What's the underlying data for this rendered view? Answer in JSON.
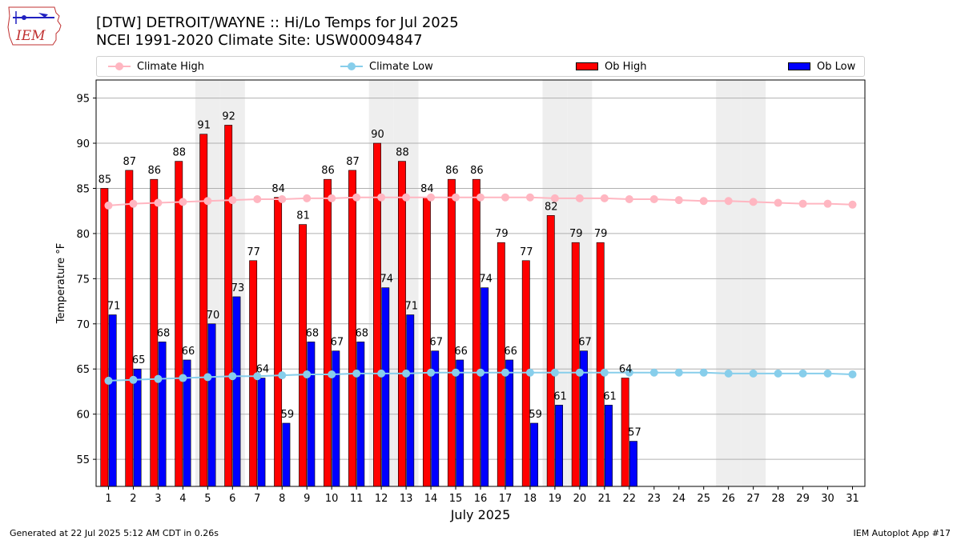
{
  "header": {
    "title_line1": "[DTW] DETROIT/WAYNE :: Hi/Lo Temps for Jul 2025",
    "title_line2": "NCEI 1991-2020 Climate Site: USW00094847",
    "logo_text": "IEM"
  },
  "legend": {
    "items": [
      {
        "label": "Climate High",
        "color": "#ffb6c1"
      },
      {
        "label": "Climate Low",
        "color": "#87ceeb"
      },
      {
        "label": "Ob High",
        "color": "#ff0000"
      },
      {
        "label": "Ob Low",
        "color": "#0000ff"
      }
    ]
  },
  "footer": {
    "left": "Generated at 22 Jul 2025 5:12 AM CDT in 0.26s",
    "right": "IEM Autoplot App #17"
  },
  "chart_data": {
    "type": "bar",
    "xlabel": "July 2025",
    "ylabel": "Temperature °F",
    "ylim": [
      52,
      97
    ],
    "yticks": [
      55,
      60,
      65,
      70,
      75,
      80,
      85,
      90,
      95
    ],
    "grid": true,
    "categories": [
      "1",
      "2",
      "3",
      "4",
      "5",
      "6",
      "7",
      "8",
      "9",
      "10",
      "11",
      "12",
      "13",
      "14",
      "15",
      "16",
      "17",
      "18",
      "19",
      "20",
      "21",
      "22",
      "23",
      "24",
      "25",
      "26",
      "27",
      "28",
      "29",
      "30",
      "31"
    ],
    "weekend_days": [
      5,
      6,
      12,
      13,
      19,
      20,
      26,
      27
    ],
    "series": [
      {
        "name": "Ob High",
        "kind": "bar",
        "color": "#ff0000",
        "values": [
          85,
          87,
          86,
          88,
          91,
          92,
          77,
          84,
          81,
          86,
          87,
          90,
          88,
          84,
          86,
          86,
          79,
          77,
          82,
          79,
          79,
          64,
          null,
          null,
          null,
          null,
          null,
          null,
          null,
          null,
          null
        ]
      },
      {
        "name": "Ob Low",
        "kind": "bar",
        "color": "#0000ff",
        "values": [
          71,
          65,
          68,
          66,
          70,
          73,
          64,
          59,
          68,
          67,
          68,
          74,
          71,
          67,
          66,
          74,
          66,
          59,
          61,
          67,
          61,
          57,
          null,
          null,
          null,
          null,
          null,
          null,
          null,
          null,
          null
        ]
      },
      {
        "name": "Climate High",
        "kind": "line",
        "color": "#ffb6c1",
        "values": [
          83.1,
          83.3,
          83.4,
          83.5,
          83.6,
          83.7,
          83.8,
          83.8,
          83.9,
          83.9,
          84.0,
          84.0,
          84.0,
          84.0,
          84.0,
          84.0,
          84.0,
          84.0,
          83.9,
          83.9,
          83.9,
          83.8,
          83.8,
          83.7,
          83.6,
          83.6,
          83.5,
          83.4,
          83.3,
          83.3,
          83.2
        ]
      },
      {
        "name": "Climate Low",
        "kind": "line",
        "color": "#87ceeb",
        "values": [
          63.7,
          63.8,
          63.9,
          64.0,
          64.1,
          64.2,
          64.2,
          64.3,
          64.4,
          64.4,
          64.5,
          64.5,
          64.5,
          64.6,
          64.6,
          64.6,
          64.6,
          64.6,
          64.6,
          64.6,
          64.6,
          64.6,
          64.6,
          64.6,
          64.6,
          64.5,
          64.5,
          64.5,
          64.5,
          64.5,
          64.4
        ]
      }
    ]
  }
}
